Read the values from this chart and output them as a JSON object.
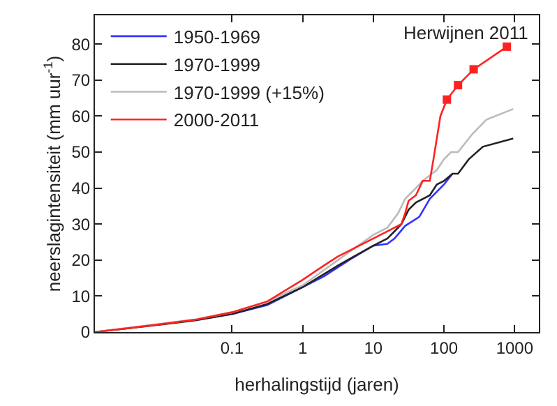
{
  "chart_data": {
    "type": "line",
    "xlabel": "herhalingstijd (jaren)",
    "ylabel": "neerslagintensiteit (mm uur$^{-1}$)",
    "annotations": [
      "Herwijnen 2011"
    ],
    "log": "x",
    "xlim": [
      0.00115,
      2200
    ],
    "xticks": [
      0.1,
      1,
      10,
      100,
      1000
    ],
    "ylim": [
      0,
      88
    ],
    "yticks": [
      0,
      10,
      20,
      30,
      40,
      50,
      60,
      70,
      80
    ],
    "legend": "top left",
    "marker": "none",
    "line_style": "solid",
    "series": [
      {
        "name": "1950-1969",
        "color": "#3333ff",
        "x": [
          0.1,
          0.316,
          1,
          2,
          3.16,
          5,
          10,
          15.8,
          20,
          28.2,
          44.7,
          63,
          100,
          132
        ],
        "values": [
          5,
          7.5,
          12.5,
          15.5,
          18,
          20.5,
          24,
          24.5,
          26,
          29.5,
          32,
          37,
          41,
          44
        ]
      },
      {
        "name": "1970-1999",
        "color": "#222222",
        "x": [
          0.00115,
          0.00316,
          0.01,
          0.0316,
          0.1,
          0.316,
          1,
          3.16,
          10,
          15.8,
          20,
          25,
          31.6,
          40,
          63,
          79,
          100,
          132,
          158,
          224,
          355,
          955
        ],
        "values": [
          0,
          1,
          2.1,
          3.3,
          5,
          7.8,
          12.5,
          18.5,
          24,
          26,
          28,
          30,
          34,
          36,
          38,
          41,
          42,
          44,
          44,
          48,
          51.5,
          53.8
        ]
      },
      {
        "name": "1970-1999 (+15%)",
        "color": "#bbbbbb",
        "x": [
          0.00115,
          0.00316,
          0.01,
          0.0316,
          0.1,
          0.316,
          1,
          3.16,
          10,
          15.8,
          22.4,
          28.2,
          40,
          50,
          79,
          100,
          126,
          158,
          251,
          398,
          955
        ],
        "values": [
          0,
          1.1,
          2.3,
          3.6,
          5.5,
          8.5,
          13,
          20,
          27,
          29,
          33,
          37,
          40,
          42,
          45,
          48,
          50,
          50,
          55,
          59,
          62
        ]
      },
      {
        "name": "2000-2011",
        "color": "#ff2222",
        "x": [
          0.00115,
          0.00316,
          0.01,
          0.0316,
          0.1,
          0.316,
          1,
          2,
          3.16,
          5,
          10,
          15.8,
          25,
          28.2,
          31.6,
          40,
          50,
          63,
          71,
          89,
          110
        ],
        "values": [
          0,
          1,
          2.2,
          3.5,
          5.5,
          8.5,
          14.5,
          18.5,
          21,
          23,
          26,
          28,
          30,
          33,
          36.5,
          38,
          42,
          42,
          48,
          60,
          64.6
        ]
      },
      {
        "color": "#ff2222",
        "marker": "square",
        "x": [
          110,
          158,
          263,
          776
        ],
        "values": [
          64.6,
          68.6,
          73,
          79.3
        ]
      }
    ]
  }
}
